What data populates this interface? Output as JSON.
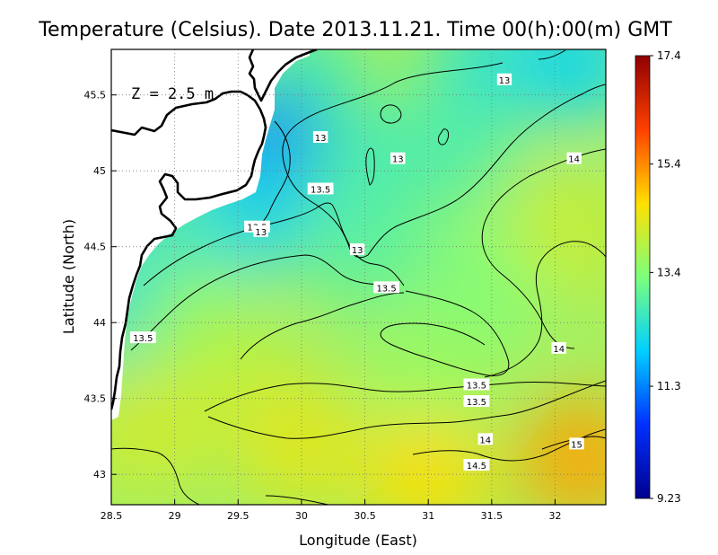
{
  "chart_data": {
    "type": "heatmap",
    "title": "Temperature (Celsius). Date 2013.11.21. Time 00(h):00(m)  GMT",
    "xlabel": "Longitude (East)",
    "ylabel": "Latitude (North)",
    "depth_label": "Z = 2.5 m",
    "xlim": [
      28.5,
      32.4
    ],
    "ylim": [
      42.8,
      45.8
    ],
    "x_ticks": [
      28.5,
      29,
      29.5,
      30,
      30.5,
      31,
      31.5,
      32
    ],
    "x_tick_labels": [
      "28.5",
      "29",
      "29.5",
      "30",
      "30.5",
      "31",
      "31.5",
      "32"
    ],
    "y_ticks": [
      43,
      43.5,
      44,
      44.5,
      45,
      45.5
    ],
    "y_tick_labels": [
      "43",
      "43.5",
      "44",
      "44.5",
      "45",
      "45.5"
    ],
    "grid": true,
    "colorbar": {
      "min": 9.23,
      "max": 17.4,
      "tick_values": [
        17.4,
        15.4,
        13.4,
        11.3,
        9.23
      ],
      "tick_labels": [
        "17.4",
        "15.4",
        "13.4",
        "11.3",
        "9.23"
      ],
      "colors": [
        "#00008f",
        "#0030ff",
        "#00d0ff",
        "#7cff7c",
        "#ffe000",
        "#ff4000",
        "#8f0000"
      ]
    },
    "contour_levels": [
      13,
      13.5,
      14,
      14.5,
      15
    ],
    "contour_labels": [
      {
        "text": "13",
        "x": 31.6,
        "y": 45.6
      },
      {
        "text": "13",
        "x": 30.15,
        "y": 45.22
      },
      {
        "text": "13",
        "x": 30.76,
        "y": 45.08
      },
      {
        "text": "14",
        "x": 32.15,
        "y": 45.08
      },
      {
        "text": "13.5",
        "x": 30.15,
        "y": 44.88
      },
      {
        "text": "13.5",
        "x": 29.65,
        "y": 44.63
      },
      {
        "text": "13",
        "x": 29.68,
        "y": 44.6
      },
      {
        "text": "13",
        "x": 30.44,
        "y": 44.48
      },
      {
        "text": "13.5",
        "x": 30.67,
        "y": 44.23
      },
      {
        "text": "13.5",
        "x": 28.75,
        "y": 43.9
      },
      {
        "text": "14",
        "x": 32.03,
        "y": 43.83
      },
      {
        "text": "13.5",
        "x": 31.38,
        "y": 43.59
      },
      {
        "text": "13.5",
        "x": 31.38,
        "y": 43.48
      },
      {
        "text": "14",
        "x": 31.45,
        "y": 43.23
      },
      {
        "text": "15",
        "x": 32.17,
        "y": 43.2
      },
      {
        "text": "14.5",
        "x": 31.38,
        "y": 43.06
      }
    ],
    "temperature_field": [
      {
        "lon": 30.0,
        "lat": 45.6,
        "t": 12.7
      },
      {
        "lon": 31.5,
        "lat": 45.7,
        "t": 12.4
      },
      {
        "lon": 32.2,
        "lat": 45.72,
        "t": 12.1
      },
      {
        "lon": 29.75,
        "lat": 45.12,
        "t": 11.3
      },
      {
        "lon": 29.55,
        "lat": 44.7,
        "t": 12.1
      },
      {
        "lon": 29.0,
        "lat": 44.55,
        "t": 12.6
      },
      {
        "lon": 28.6,
        "lat": 44.15,
        "t": 12.4
      },
      {
        "lon": 30.5,
        "lat": 45.0,
        "t": 12.7
      },
      {
        "lon": 30.5,
        "lat": 44.5,
        "t": 12.9
      },
      {
        "lon": 31.2,
        "lat": 45.2,
        "t": 12.8
      },
      {
        "lon": 31.5,
        "lat": 44.3,
        "t": 13.3
      },
      {
        "lon": 31.0,
        "lat": 43.7,
        "t": 13.6
      },
      {
        "lon": 29.2,
        "lat": 44.0,
        "t": 13.6
      },
      {
        "lon": 32.1,
        "lat": 44.6,
        "t": 14.1
      },
      {
        "lon": 29.5,
        "lat": 43.6,
        "t": 14.0
      },
      {
        "lon": 30.0,
        "lat": 43.2,
        "t": 14.4
      },
      {
        "lon": 31.0,
        "lat": 43.0,
        "t": 14.7
      },
      {
        "lon": 32.2,
        "lat": 43.1,
        "t": 15.2
      },
      {
        "lon": 28.8,
        "lat": 43.3,
        "t": 14.2
      }
    ]
  }
}
